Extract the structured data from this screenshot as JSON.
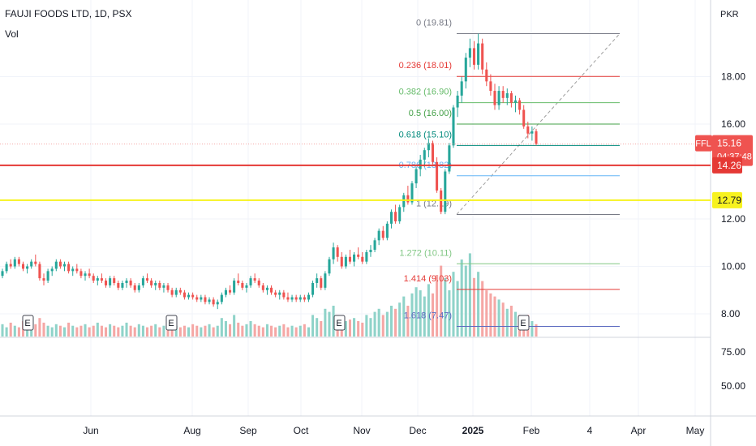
{
  "header": {
    "title": "FAUJI FOODS LTD, 1D, PSX",
    "volume_label": "Vol",
    "currency": "PKR"
  },
  "colors": {
    "up": "#26a69a",
    "down": "#ef5350",
    "vol_up": "#8fd3c9",
    "vol_down": "#f5a7a5",
    "support_red": "#e53935",
    "support_yellow": "#f7f21f",
    "fib_trend": "#9e9e9e"
  },
  "chart_data": {
    "type": "candlestick",
    "symbol": "FFL",
    "exchange": "PSX",
    "interval": "1D",
    "price_axis": {
      "ticks": [
        8.0,
        10.0,
        12.0,
        16.0,
        18.0
      ],
      "tick_labels": [
        "8.00",
        "10.00",
        "12.00",
        "16.00",
        "18.00"
      ]
    },
    "volume_axis": {
      "ticks": [
        50,
        75
      ],
      "tick_labels": [
        "50.00",
        "75.00"
      ]
    },
    "time_axis": {
      "labels": [
        "Jun",
        "Aug",
        "Sep",
        "Oct",
        "Nov",
        "Dec",
        "2025",
        "Feb",
        "4",
        "Apr",
        "May"
      ]
    },
    "last_price": {
      "symbol_label": "FFL",
      "value": "15.16",
      "countdown": "04:37:48"
    },
    "horizontal_lines": [
      {
        "value": 14.26,
        "label": "14.26",
        "color": "#e53935"
      },
      {
        "value": 12.79,
        "label": "12.79",
        "color": "#f7f21f"
      }
    ],
    "fibonacci": {
      "from": 12.19,
      "to": 19.81,
      "levels": [
        {
          "ratio": "0",
          "price": 19.81,
          "label": "0 (19.81)",
          "color": "#787b86"
        },
        {
          "ratio": "0.236",
          "price": 18.01,
          "label": "0.236 (18.01)",
          "color": "#e53935"
        },
        {
          "ratio": "0.382",
          "price": 16.9,
          "label": "0.382 (16.90)",
          "color": "#66bb6a"
        },
        {
          "ratio": "0.5",
          "price": 16.0,
          "label": "0.5 (16.00)",
          "color": "#43a047"
        },
        {
          "ratio": "0.618",
          "price": 15.1,
          "label": "0.618 (15.10)",
          "color": "#00897b"
        },
        {
          "ratio": "0.786",
          "price": 13.82,
          "label": "0.786 (13.82)",
          "color": "#64b5f6"
        },
        {
          "ratio": "1",
          "price": 12.19,
          "label": "1 (12.19)",
          "color": "#787b86"
        },
        {
          "ratio": "1.272",
          "price": 10.11,
          "label": "1.272 (10.11)",
          "color": "#81c784"
        },
        {
          "ratio": "1.414",
          "price": 9.03,
          "label": "1.414 (9.03)",
          "color": "#e53935"
        },
        {
          "ratio": "1.618",
          "price": 7.47,
          "label": "1.618 (7.47)",
          "color": "#5c6bc0"
        }
      ]
    },
    "earnings_markers": [
      {
        "date": "May",
        "label": "E"
      },
      {
        "date": "Aug",
        "label": "E"
      },
      {
        "date": "Oct",
        "label": "E"
      },
      {
        "date": "Jan",
        "label": "E"
      }
    ],
    "candles": [
      [
        9.6,
        9.9,
        9.5,
        9.8
      ],
      [
        9.8,
        10.2,
        9.7,
        10.1
      ],
      [
        10.1,
        10.3,
        9.9,
        10.0
      ],
      [
        10.0,
        10.4,
        9.9,
        10.3
      ],
      [
        10.3,
        10.4,
        10.0,
        10.1
      ],
      [
        10.1,
        10.2,
        9.8,
        9.9
      ],
      [
        9.9,
        10.1,
        9.7,
        10.0
      ],
      [
        10.0,
        10.3,
        9.9,
        10.2
      ],
      [
        10.2,
        10.5,
        10.0,
        10.1
      ],
      [
        10.1,
        10.2,
        9.4,
        9.5
      ],
      [
        9.5,
        9.7,
        9.2,
        9.4
      ],
      [
        9.4,
        9.9,
        9.3,
        9.8
      ],
      [
        9.8,
        10.0,
        9.6,
        9.9
      ],
      [
        9.9,
        10.3,
        9.8,
        10.2
      ],
      [
        10.2,
        10.3,
        9.9,
        10.0
      ],
      [
        10.0,
        10.2,
        9.8,
        10.1
      ],
      [
        10.1,
        10.2,
        9.7,
        9.8
      ],
      [
        9.8,
        10.0,
        9.6,
        9.9
      ],
      [
        9.9,
        10.1,
        9.7,
        9.8
      ],
      [
        9.8,
        9.9,
        9.5,
        9.6
      ],
      [
        9.6,
        9.8,
        9.4,
        9.7
      ],
      [
        9.7,
        9.9,
        9.5,
        9.6
      ],
      [
        9.6,
        9.7,
        9.3,
        9.4
      ],
      [
        9.4,
        9.6,
        9.2,
        9.5
      ],
      [
        9.5,
        9.7,
        9.3,
        9.4
      ],
      [
        9.4,
        9.5,
        9.1,
        9.2
      ],
      [
        9.2,
        9.6,
        9.1,
        9.5
      ],
      [
        9.5,
        9.6,
        9.2,
        9.3
      ],
      [
        9.3,
        9.4,
        9.0,
        9.1
      ],
      [
        9.1,
        9.4,
        9.0,
        9.3
      ],
      [
        9.3,
        9.5,
        9.1,
        9.4
      ],
      [
        9.4,
        9.5,
        9.1,
        9.2
      ],
      [
        9.2,
        9.3,
        8.9,
        9.0
      ],
      [
        9.0,
        9.3,
        8.9,
        9.2
      ],
      [
        9.2,
        9.6,
        9.1,
        9.5
      ],
      [
        9.5,
        9.7,
        9.3,
        9.4
      ],
      [
        9.4,
        9.5,
        9.1,
        9.2
      ],
      [
        9.2,
        9.4,
        9.0,
        9.3
      ],
      [
        9.3,
        9.4,
        9.0,
        9.1
      ],
      [
        9.1,
        9.3,
        8.9,
        9.2
      ],
      [
        9.2,
        9.3,
        8.9,
        9.0
      ],
      [
        9.0,
        9.1,
        8.7,
        8.8
      ],
      [
        8.8,
        9.1,
        8.7,
        9.0
      ],
      [
        9.0,
        9.1,
        8.8,
        8.9
      ],
      [
        8.9,
        9.0,
        8.6,
        8.7
      ],
      [
        8.7,
        8.9,
        8.6,
        8.8
      ],
      [
        8.8,
        8.9,
        8.6,
        8.7
      ],
      [
        8.7,
        8.8,
        8.5,
        8.6
      ],
      [
        8.6,
        8.8,
        8.5,
        8.7
      ],
      [
        8.7,
        8.8,
        8.4,
        8.5
      ],
      [
        8.5,
        8.7,
        8.4,
        8.6
      ],
      [
        8.6,
        8.7,
        8.3,
        8.4
      ],
      [
        8.4,
        8.6,
        8.2,
        8.5
      ],
      [
        8.5,
        8.9,
        8.4,
        8.8
      ],
      [
        8.8,
        9.1,
        8.7,
        9.0
      ],
      [
        9.0,
        9.2,
        8.8,
        8.9
      ],
      [
        8.9,
        9.5,
        8.8,
        9.4
      ],
      [
        9.4,
        9.7,
        9.2,
        9.3
      ],
      [
        9.3,
        9.4,
        9.0,
        9.1
      ],
      [
        9.1,
        9.3,
        8.9,
        9.2
      ],
      [
        9.2,
        9.6,
        9.1,
        9.5
      ],
      [
        9.5,
        9.7,
        9.3,
        9.4
      ],
      [
        9.4,
        9.5,
        9.1,
        9.2
      ],
      [
        9.2,
        9.3,
        8.9,
        9.0
      ],
      [
        9.0,
        9.2,
        8.8,
        9.1
      ],
      [
        9.1,
        9.2,
        8.8,
        8.9
      ],
      [
        8.9,
        9.0,
        8.7,
        8.8
      ],
      [
        8.8,
        9.0,
        8.6,
        8.9
      ],
      [
        8.9,
        9.0,
        8.6,
        8.7
      ],
      [
        8.7,
        8.9,
        8.5,
        8.6
      ],
      [
        8.6,
        8.8,
        8.5,
        8.7
      ],
      [
        8.7,
        8.8,
        8.5,
        8.6
      ],
      [
        8.6,
        8.8,
        8.5,
        8.7
      ],
      [
        8.7,
        8.8,
        8.5,
        8.6
      ],
      [
        8.6,
        8.9,
        8.5,
        8.8
      ],
      [
        8.8,
        9.4,
        8.7,
        9.3
      ],
      [
        9.3,
        9.7,
        9.1,
        9.5
      ],
      [
        9.5,
        9.6,
        9.0,
        9.1
      ],
      [
        9.1,
        9.8,
        9.0,
        9.7
      ],
      [
        9.7,
        10.4,
        9.6,
        10.3
      ],
      [
        10.3,
        11.0,
        10.1,
        10.8
      ],
      [
        10.8,
        10.9,
        10.2,
        10.4
      ],
      [
        10.4,
        10.6,
        9.9,
        10.0
      ],
      [
        10.0,
        10.5,
        9.9,
        10.4
      ],
      [
        10.4,
        10.7,
        10.1,
        10.2
      ],
      [
        10.2,
        10.6,
        10.0,
        10.5
      ],
      [
        10.5,
        10.8,
        10.3,
        10.4
      ],
      [
        10.4,
        10.6,
        10.1,
        10.2
      ],
      [
        10.2,
        10.7,
        10.1,
        10.6
      ],
      [
        10.6,
        10.9,
        10.4,
        10.7
      ],
      [
        10.7,
        11.2,
        10.6,
        11.1
      ],
      [
        11.1,
        11.6,
        10.9,
        11.5
      ],
      [
        11.5,
        11.7,
        11.1,
        11.2
      ],
      [
        11.2,
        11.9,
        11.1,
        11.8
      ],
      [
        11.8,
        12.4,
        11.6,
        12.3
      ],
      [
        12.3,
        12.6,
        11.8,
        11.9
      ],
      [
        11.9,
        12.6,
        11.8,
        12.5
      ],
      [
        12.5,
        13.1,
        12.3,
        13.0
      ],
      [
        13.0,
        13.4,
        12.6,
        12.7
      ],
      [
        12.7,
        13.6,
        12.6,
        13.5
      ],
      [
        13.5,
        14.2,
        13.3,
        14.1
      ],
      [
        14.1,
        14.7,
        13.8,
        14.5
      ],
      [
        14.5,
        15.0,
        14.2,
        14.9
      ],
      [
        14.9,
        15.4,
        14.6,
        15.2
      ],
      [
        15.2,
        15.3,
        14.3,
        14.4
      ],
      [
        14.4,
        14.6,
        13.1,
        13.2
      ],
      [
        13.2,
        13.3,
        12.2,
        12.3
      ],
      [
        12.3,
        14.1,
        12.2,
        14.0
      ],
      [
        14.0,
        15.2,
        13.9,
        15.1
      ],
      [
        15.1,
        16.8,
        15.0,
        16.7
      ],
      [
        16.7,
        17.4,
        16.3,
        17.2
      ],
      [
        17.2,
        18.0,
        16.9,
        17.8
      ],
      [
        17.8,
        19.0,
        17.5,
        18.8
      ],
      [
        18.8,
        19.6,
        18.4,
        19.2
      ],
      [
        19.2,
        19.5,
        18.3,
        18.5
      ],
      [
        18.5,
        19.81,
        18.3,
        19.4
      ],
      [
        19.4,
        19.6,
        18.1,
        18.3
      ],
      [
        18.3,
        18.6,
        17.6,
        17.8
      ],
      [
        17.8,
        18.1,
        17.2,
        17.4
      ],
      [
        17.4,
        17.7,
        16.6,
        16.8
      ],
      [
        16.8,
        17.6,
        16.6,
        17.4
      ],
      [
        17.4,
        17.6,
        16.9,
        17.1
      ],
      [
        17.1,
        17.5,
        16.8,
        17.3
      ],
      [
        17.3,
        17.4,
        16.7,
        16.9
      ],
      [
        16.9,
        17.2,
        16.5,
        17.0
      ],
      [
        17.0,
        17.1,
        16.4,
        16.6
      ],
      [
        16.6,
        16.8,
        15.8,
        15.9
      ],
      [
        15.9,
        16.1,
        15.4,
        15.6
      ],
      [
        15.6,
        15.9,
        15.3,
        15.7
      ],
      [
        15.7,
        15.8,
        15.1,
        15.16
      ]
    ],
    "volumes": [
      8,
      6,
      9,
      7,
      6,
      10,
      7,
      6,
      8,
      12,
      9,
      7,
      6,
      8,
      7,
      6,
      9,
      7,
      6,
      7,
      8,
      6,
      7,
      9,
      7,
      6,
      8,
      7,
      6,
      7,
      9,
      7,
      6,
      8,
      7,
      6,
      7,
      8,
      6,
      7,
      6,
      8,
      7,
      6,
      7,
      6,
      8,
      7,
      6,
      7,
      8,
      6,
      7,
      12,
      10,
      8,
      14,
      9,
      7,
      8,
      10,
      8,
      7,
      6,
      8,
      7,
      6,
      7,
      8,
      6,
      7,
      6,
      7,
      8,
      6,
      14,
      12,
      10,
      18,
      16,
      20,
      14,
      12,
      10,
      11,
      12,
      10,
      9,
      14,
      12,
      16,
      18,
      14,
      16,
      20,
      18,
      22,
      26,
      20,
      28,
      32,
      30,
      26,
      34,
      28,
      40,
      46,
      38,
      30,
      42,
      36,
      50,
      46,
      54,
      38,
      42,
      36,
      30,
      28,
      26,
      24,
      22,
      18,
      20,
      16,
      14,
      12,
      14,
      10,
      8
    ]
  }
}
